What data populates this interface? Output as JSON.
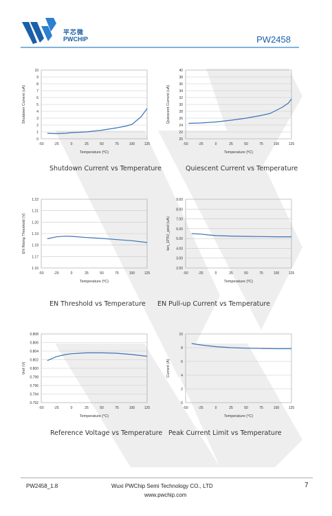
{
  "header": {
    "brand_cn": "平芯微",
    "brand_en": "PWCHIP",
    "part_number": "PW2458"
  },
  "footer": {
    "doc_id": "PW2458_1.8",
    "company": "Wuxi PWChip Semi Technology CO., LTD",
    "url": "www.pwchip.com",
    "page": "7"
  },
  "colors": {
    "brand": "#1a5fa8",
    "line": "#3a72b8",
    "watermark": "#eeeeee"
  },
  "chart_data": [
    {
      "type": "line",
      "caption": "Shutdown Current vs Temperature",
      "xlabel": "Temperature (ºC)",
      "ylabel": "Shutdown Current (uA)",
      "xlim": [
        -50,
        125
      ],
      "ylim": [
        0,
        10
      ],
      "xticks": [
        "-50",
        "-25",
        "0",
        "25",
        "50",
        "75",
        "100",
        "125"
      ],
      "yticks": [
        "0",
        "1",
        "2",
        "3",
        "4",
        "5",
        "6",
        "7",
        "8",
        "9",
        "10"
      ],
      "yvals": [
        0,
        1,
        2,
        3,
        4,
        5,
        6,
        7,
        8,
        9,
        10
      ],
      "series": [
        {
          "x": [
            -40,
            -25,
            -10,
            0,
            25,
            50,
            75,
            90,
            100,
            115,
            125
          ],
          "y": [
            0.8,
            0.75,
            0.8,
            0.9,
            1.0,
            1.25,
            1.6,
            1.85,
            2.1,
            3.2,
            4.4
          ]
        }
      ]
    },
    {
      "type": "line",
      "caption": "Quiescent Current vs Temperature",
      "xlabel": "Temperature (ºC)",
      "ylabel": "Quiescent Current (uA)",
      "xlim": [
        -50,
        125
      ],
      "ylim": [
        20,
        40
      ],
      "xticks": [
        "-50",
        "-25",
        "0",
        "25",
        "50",
        "75",
        "100",
        "125"
      ],
      "yticks": [
        "20",
        "22",
        "24",
        "26",
        "28",
        "30",
        "32",
        "34",
        "36",
        "38",
        "40"
      ],
      "yvals": [
        20,
        22,
        24,
        26,
        28,
        30,
        32,
        34,
        36,
        38,
        40
      ],
      "series": [
        {
          "x": [
            -45,
            -25,
            0,
            25,
            50,
            75,
            90,
            100,
            110,
            120,
            125
          ],
          "y": [
            24.5,
            24.6,
            24.9,
            25.4,
            26.0,
            26.8,
            27.4,
            28.3,
            29.2,
            30.4,
            31.6
          ]
        }
      ]
    },
    {
      "type": "line",
      "caption": "EN Threshold vs Temperature",
      "xlabel": "Temperature (ºC)",
      "ylabel": "EN Rising Threshold (V)",
      "xlim": [
        -50,
        125
      ],
      "ylim": [
        1.16,
        1.22
      ],
      "xticks": [
        "-50",
        "-25",
        "0",
        "25",
        "50",
        "75",
        "100",
        "125"
      ],
      "yticks": [
        "1.16",
        "1.17",
        "1.18",
        "1.19",
        "1.20",
        "1.21",
        "1.22"
      ],
      "yvals": [
        1.16,
        1.17,
        1.18,
        1.19,
        1.2,
        1.21,
        1.22
      ],
      "series": [
        {
          "x": [
            -40,
            -25,
            -10,
            0,
            25,
            50,
            75,
            100,
            125
          ],
          "y": [
            1.1855,
            1.1872,
            1.1878,
            1.1876,
            1.1866,
            1.1858,
            1.1848,
            1.1838,
            1.1822
          ]
        }
      ]
    },
    {
      "type": "line",
      "caption": "EN Pull-up Current vs Temperature",
      "xlabel": "Temperature (ºC)",
      "ylabel": "Ien_1P5V_pool (uA)",
      "xlim": [
        -50,
        125
      ],
      "ylim": [
        2.0,
        9.0
      ],
      "xticks": [
        "-50",
        "-25",
        "0",
        "25",
        "50",
        "75",
        "100",
        "125"
      ],
      "yticks": [
        "2.00",
        "3.00",
        "4.00",
        "5.00",
        "6.00",
        "7.00",
        "8.00",
        "9.00"
      ],
      "yvals": [
        2,
        3,
        4,
        5,
        6,
        7,
        8,
        9
      ],
      "series": [
        {
          "x": [
            -40,
            -25,
            -10,
            0,
            25,
            50,
            75,
            100,
            125
          ],
          "y": [
            5.5,
            5.45,
            5.35,
            5.3,
            5.25,
            5.22,
            5.2,
            5.18,
            5.18
          ]
        }
      ]
    },
    {
      "type": "line",
      "caption": "Reference Voltage vs Temperature",
      "xlabel": "Temperature (°C)",
      "ylabel": "Vref (V)",
      "xlim": [
        -50,
        125
      ],
      "ylim": [
        0.792,
        0.808
      ],
      "xticks": [
        "-50",
        "-25",
        "0",
        "25",
        "50",
        "75",
        "100",
        "125"
      ],
      "yticks": [
        "0.792",
        "0.794",
        "0.796",
        "0.798",
        "0.800",
        "0.802",
        "0.804",
        "0.806",
        "0.808"
      ],
      "yvals": [
        0.792,
        0.794,
        0.796,
        0.798,
        0.8,
        0.802,
        0.804,
        0.806,
        0.808
      ],
      "series": [
        {
          "x": [
            -40,
            -25,
            -10,
            0,
            25,
            50,
            75,
            100,
            125
          ],
          "y": [
            0.8018,
            0.8027,
            0.8032,
            0.8034,
            0.8036,
            0.8036,
            0.8035,
            0.8032,
            0.8028
          ]
        }
      ]
    },
    {
      "type": "line",
      "caption": "Peak Current Limit vs Temperature",
      "xlabel": "Temperature (°C)",
      "ylabel": "Current (A)",
      "xlim": [
        -50,
        125
      ],
      "ylim": [
        0,
        10
      ],
      "xticks": [
        "-50",
        "-25",
        "0",
        "25",
        "50",
        "75",
        "100",
        "125"
      ],
      "yticks": [
        "0",
        "2",
        "4",
        "6",
        "8",
        "10"
      ],
      "yvals": [
        0,
        2,
        4,
        6,
        8,
        10
      ],
      "series": [
        {
          "x": [
            -40,
            -25,
            -10,
            0,
            25,
            50,
            75,
            100,
            125
          ],
          "y": [
            8.6,
            8.4,
            8.25,
            8.15,
            8.0,
            7.92,
            7.88,
            7.85,
            7.85
          ]
        }
      ]
    }
  ]
}
